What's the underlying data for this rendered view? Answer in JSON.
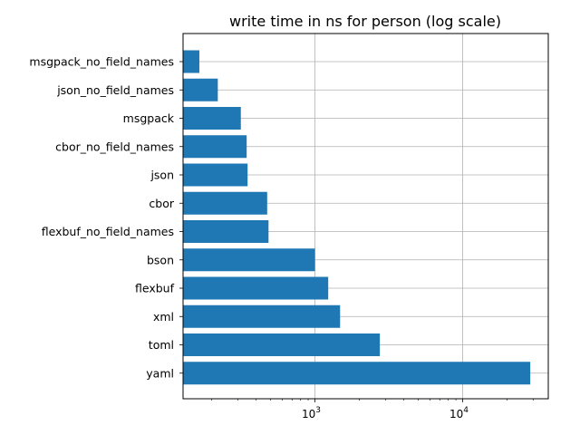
{
  "chart_data": {
    "type": "bar",
    "orientation": "horizontal",
    "title": "write time in ns for person (log scale)",
    "xlabel": "",
    "ylabel": "",
    "x_scale": "log",
    "xlim": [
      128,
      38000
    ],
    "grid": true,
    "colors": {
      "bar": "#1f77b4",
      "grid": "#b0b0b0"
    },
    "categories": [
      "msgpack_no_field_names",
      "json_no_field_names",
      "msgpack",
      "cbor_no_field_names",
      "json",
      "cbor",
      "flexbuf_no_field_names",
      "bson",
      "flexbuf",
      "xml",
      "toml",
      "yaml"
    ],
    "values": [
      165,
      220,
      315,
      345,
      350,
      475,
      485,
      1000,
      1230,
      1480,
      2750,
      28700
    ],
    "x_ticks": [
      {
        "base": "10",
        "exp": "3",
        "value": 1000
      },
      {
        "base": "10",
        "exp": "4",
        "value": 10000
      }
    ]
  }
}
